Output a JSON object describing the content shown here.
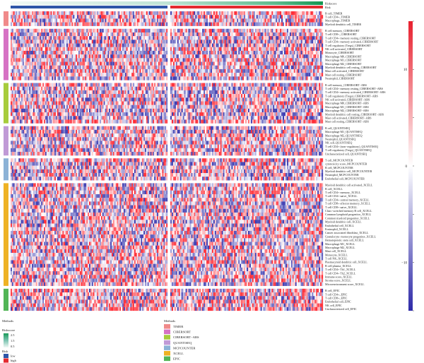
{
  "chart_data": {
    "type": "heatmap",
    "annotation_tracks": [
      "Riskscore",
      "Risk"
    ],
    "sample_groups": [
      {
        "name": "low",
        "count": 118
      },
      {
        "name": "high",
        "count": 110
      }
    ],
    "colorbar": {
      "min": -15,
      "max": 15,
      "ticks": [
        15,
        10,
        5,
        0,
        -5,
        -10,
        -15
      ],
      "tick_labels": [
        "",
        "10",
        "",
        "0",
        "",
        "−10",
        ""
      ],
      "colors": [
        "#2e2aa8",
        "#ffffff",
        "#e8202e"
      ]
    },
    "methods": [
      {
        "name": "TIMER",
        "color": "#f08a8a",
        "cells": [
          "B cell_TIMER",
          "T cell CD4+_TIMER",
          "Macrophage_TIMER",
          "Myeloid dendritic cell_TIMER"
        ]
      },
      {
        "name": "CIBERSORT",
        "color": "#d672c4",
        "cells": [
          "B cell memory_CIBERSORT",
          "T cell CD8+_CIBERSORT",
          "T cell CD4+ memory resting_CIBERSORT",
          "T cell CD4+ memory activated_CIBERSORT",
          "T cell regulatory (Tregs)_CIBERSORT",
          "NK cell activated_CIBERSORT",
          "Monocyte_CIBERSORT",
          "Macrophage M0_CIBERSORT",
          "Macrophage M1_CIBERSORT",
          "Macrophage M2_CIBERSORT",
          "Myeloid dendritic cell resting_CIBERSORT",
          "Mast cell activated_CIBERSORT",
          "Mast cell resting_CIBERSORT",
          "Neutrophil_CIBERSORT"
        ]
      },
      {
        "name": "CIBERSORT−ABS",
        "color": "#a7cc3c",
        "cells": [
          "B cell memory_CIBERSORT−ABS",
          "T cell CD4+ memory resting_CIBERSORT−ABS",
          "T cell CD4+ memory activated_CIBERSORT−ABS",
          "T cell regulatory (Tregs)_CIBERSORT−ABS",
          "NK cell activated_CIBERSORT−ABS",
          "Macrophage M0_CIBERSORT−ABS",
          "Macrophage M1_CIBERSORT−ABS",
          "Macrophage M2_CIBERSORT−ABS",
          "Myeloid dendritic cell resting_CIBERSORT−ABS",
          "Mast cell activated_CIBERSORT−ABS",
          "Mast cell resting_CIBERSORT−ABS"
        ]
      },
      {
        "name": "QUANTISEQ",
        "color": "#c09ad6",
        "cells": [
          "B cell_QUANTISEQ",
          "Macrophage M1_QUANTISEQ",
          "Macrophage M2_QUANTISEQ",
          "Neutrophil_QUANTISEQ",
          "NK cell_QUANTISEQ",
          "T cell CD4+ (non−regulatory)_QUANTISEQ",
          "T cell regulatory (Tregs)_QUANTISEQ",
          "Uncharacterized cell_QUANTISEQ"
        ]
      },
      {
        "name": "MCPCOUNTER",
        "color": "#8cb2d6",
        "cells": [
          "T cell_MCPCOUNTER",
          "cytotoxicity score_MCPCOUNTER",
          "B cell_MCPCOUNTER",
          "Myeloid dendritic cell_MCPCOUNTER",
          "Neutrophil_MCPCOUNTER",
          "Endothelial cell_MCPCOUNTER"
        ]
      },
      {
        "name": "XCELL",
        "color": "#eeb224",
        "cells": [
          "Myeloid dendritic cell activated_XCELL",
          "B cell_XCELL",
          "T cell CD4+ memory_XCELL",
          "T cell CD4+ naive_XCELL",
          "T cell CD4+ central memory_XCELL",
          "T cell CD8+ effector memory_XCELL",
          "T cell CD8+ naive_XCELL",
          "Class−switched memory B cell_XCELL",
          "Common lymphoid progenitor_XCELL",
          "Common myeloid progenitor_XCELL",
          "Myeloid dendritic cell_XCELL",
          "Endothelial cell_XCELL",
          "Eosinophil_XCELL",
          "Cancer associated fibroblast_XCELL",
          "Granulocyte−monocyte progenitor_XCELL",
          "Hematopoietic stem cell_XCELL",
          "Macrophage M1_XCELL",
          "Macrophage M2_XCELL",
          "Mast cell_XCELL",
          "Monocyte_XCELL",
          "T cell NK_XCELL",
          "Plasmacytoid dendritic cell_XCELL",
          "B cell plasma_XCELL",
          "T cell CD4+ Th1_XCELL",
          "T cell CD4+ Th2_XCELL",
          "Immune score_XCELL",
          "Stroma score_XCELL",
          "Microenvironment score_XCELL"
        ]
      },
      {
        "name": "EPIC",
        "color": "#52b556",
        "cells": [
          "B cell_EPIC",
          "T cell CD4+_EPIC",
          "T cell CD8+_EPIC",
          "Endothelial cell_EPIC",
          "NK cell_EPIC",
          "Uncharacterized cell_EPIC"
        ]
      }
    ],
    "legends": {
      "riskscore": {
        "title": "Riskscore",
        "ticks": [
          "2.5",
          "1.5",
          "0.5"
        ],
        "colors": [
          "#1a9a58",
          "#7cc4b2",
          "#f2f9f6"
        ]
      },
      "risk": {
        "title": "Risk",
        "items": [
          {
            "label": "low",
            "color": "#2e56a8"
          },
          {
            "label": "high",
            "color": "#e42a30"
          }
        ]
      },
      "methods": {
        "title": "Methods"
      }
    },
    "legend_labels": {
      "riskscore": "Riskscore",
      "risk": "Risk",
      "methods": "Methods"
    }
  }
}
